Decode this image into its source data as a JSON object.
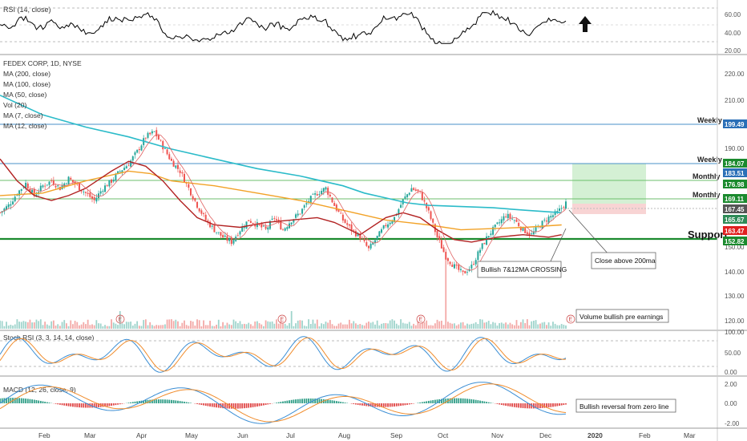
{
  "colors": {
    "ma200": "#2bbbc9",
    "ma100": "#f2a227",
    "ma50": "#b22222",
    "ma7": "#e06060",
    "ma12": "#c8a0a0",
    "up": "#26a69a",
    "down": "#ef5350",
    "support": "#1b8a2e",
    "level_line": "#4a90c8",
    "monthly_line": "#6cbf6c",
    "zone_profit": "#d4f0d4",
    "zone_stop": "#f8d4d4",
    "macd_pos": "#2e9d86",
    "macd_neg": "#e04848",
    "rsi": "#000000",
    "stoch_k": "#3b8ed4",
    "stoch_d": "#f08c2c"
  },
  "panes": {
    "rsi": {
      "title": "RSI (14, close)",
      "ticks": [
        "60.00",
        "40.00",
        "20.00"
      ],
      "arrow_icon": "up-arrow-icon"
    },
    "price": {
      "legend": [
        "FEDEX CORP, 1D, NYSE",
        "MA (200, close)",
        "MA (100, close)",
        "MA (50, close)",
        "Vol (20)",
        "MA (7, close)",
        "MA (12, close)"
      ],
      "ticks": [
        "220.00",
        "210.00",
        "190.00",
        "150.00",
        "140.00",
        "130.00",
        "120.00"
      ]
    },
    "stoch": {
      "title": "Stoch RSI (3, 3, 14, 14, close)",
      "ticks": [
        "100.00",
        "50.00",
        "0.00"
      ]
    },
    "macd": {
      "title": "MACD (12, 26, close, 9)",
      "ticks": [
        "2.00",
        "0.00",
        "-2.00"
      ]
    }
  },
  "time_axis": [
    "Feb",
    "Mar",
    "Apr",
    "May",
    "Jun",
    "Jul",
    "Aug",
    "Sep",
    "Oct",
    "Nov",
    "Dec",
    "2020",
    "Feb",
    "Mar"
  ],
  "price_badges": [
    "199.49",
    "184.07",
    "183.51",
    "176.98",
    "169.11",
    "167.45",
    "165.67",
    "163.47",
    "152.82"
  ],
  "level_labels": {
    "weekly_top": "Weekly",
    "weekly_2": "Weekly",
    "monthly_1": "Monthly",
    "monthly_2": "Monthly",
    "support": "Support"
  },
  "annotations": {
    "bullish_cross": "Bullish 7&12MA CROSSING",
    "close_above": "Close above 200ma",
    "volume": "Volume bullish pre earnings",
    "macd_note": "Bullish reversal from zero line"
  },
  "earnings_marker": "E",
  "chart_data": {
    "type": "candlestick",
    "symbol": "FEDEX CORP",
    "interval": "1D",
    "exchange": "NYSE",
    "price_range": [
      116,
      230
    ],
    "levels": [
      {
        "label": "Weekly",
        "value": 199.49
      },
      {
        "label": "Weekly",
        "value": 184.07
      },
      {
        "label": "Monthly",
        "value": 176.98
      },
      {
        "label": "Monthly",
        "value": 169.11
      },
      {
        "label": "Support",
        "value": 152.82
      }
    ],
    "current_prices": [
      183.51,
      167.45,
      165.67,
      163.47
    ],
    "close_path": [
      [
        0,
        165
      ],
      [
        4,
        168
      ],
      [
        8,
        173
      ],
      [
        12,
        177
      ],
      [
        16,
        172
      ],
      [
        20,
        176
      ],
      [
        24,
        178
      ],
      [
        28,
        175
      ],
      [
        32,
        179
      ],
      [
        36,
        176
      ],
      [
        40,
        173
      ],
      [
        44,
        170
      ],
      [
        48,
        175
      ],
      [
        52,
        178
      ],
      [
        56,
        182
      ],
      [
        60,
        185
      ],
      [
        64,
        190
      ],
      [
        68,
        196
      ],
      [
        72,
        198
      ],
      [
        76,
        192
      ],
      [
        80,
        186
      ],
      [
        84,
        182
      ],
      [
        88,
        175
      ],
      [
        92,
        168
      ],
      [
        96,
        162
      ],
      [
        100,
        158
      ],
      [
        104,
        155
      ],
      [
        108,
        153
      ],
      [
        112,
        158
      ],
      [
        116,
        162
      ],
      [
        120,
        160
      ],
      [
        124,
        158
      ],
      [
        128,
        163
      ],
      [
        132,
        158
      ],
      [
        136,
        162
      ],
      [
        140,
        165
      ],
      [
        144,
        170
      ],
      [
        148,
        173
      ],
      [
        152,
        175
      ],
      [
        156,
        168
      ],
      [
        160,
        162
      ],
      [
        164,
        158
      ],
      [
        168,
        155
      ],
      [
        172,
        150
      ],
      [
        176,
        155
      ],
      [
        180,
        160
      ],
      [
        184,
        163
      ],
      [
        188,
        170
      ],
      [
        192,
        175
      ],
      [
        196,
        173
      ],
      [
        200,
        165
      ],
      [
        204,
        155
      ],
      [
        208,
        147
      ],
      [
        212,
        143
      ],
      [
        216,
        140
      ],
      [
        220,
        143
      ],
      [
        224,
        150
      ],
      [
        228,
        156
      ],
      [
        232,
        160
      ],
      [
        236,
        164
      ],
      [
        240,
        162
      ],
      [
        244,
        158
      ],
      [
        248,
        156
      ],
      [
        252,
        160
      ],
      [
        256,
        163
      ],
      [
        260,
        165
      ],
      [
        264,
        169
      ]
    ],
    "ma200": [
      [
        0,
        213
      ],
      [
        20,
        205
      ],
      [
        40,
        200
      ],
      [
        60,
        196
      ],
      [
        80,
        191
      ],
      [
        100,
        187
      ],
      [
        120,
        183
      ],
      [
        140,
        180
      ],
      [
        160,
        176
      ],
      [
        170,
        173
      ],
      [
        180,
        171
      ],
      [
        190,
        169
      ],
      [
        200,
        168
      ],
      [
        215,
        167.5
      ],
      [
        230,
        167
      ],
      [
        245,
        166
      ],
      [
        262,
        165
      ]
    ],
    "ma100": [
      [
        0,
        172
      ],
      [
        20,
        173
      ],
      [
        40,
        178
      ],
      [
        60,
        182
      ],
      [
        70,
        181
      ],
      [
        80,
        178
      ],
      [
        100,
        176
      ],
      [
        120,
        173
      ],
      [
        140,
        170
      ],
      [
        160,
        166
      ],
      [
        180,
        162
      ],
      [
        200,
        160
      ],
      [
        215,
        158
      ],
      [
        230,
        158.5
      ],
      [
        245,
        159
      ],
      [
        262,
        160
      ]
    ],
    "ma50": [
      [
        0,
        187
      ],
      [
        8,
        178
      ],
      [
        16,
        172
      ],
      [
        24,
        170
      ],
      [
        32,
        172
      ],
      [
        40,
        175
      ],
      [
        52,
        182
      ],
      [
        60,
        186
      ],
      [
        68,
        184
      ],
      [
        76,
        178
      ],
      [
        84,
        170
      ],
      [
        92,
        163
      ],
      [
        100,
        160
      ],
      [
        112,
        159
      ],
      [
        124,
        161
      ],
      [
        136,
        162
      ],
      [
        148,
        163
      ],
      [
        156,
        161
      ],
      [
        168,
        156
      ],
      [
        180,
        163
      ],
      [
        188,
        165
      ],
      [
        196,
        163
      ],
      [
        204,
        158
      ],
      [
        212,
        154
      ],
      [
        220,
        153
      ],
      [
        232,
        155
      ],
      [
        244,
        156
      ],
      [
        256,
        155
      ],
      [
        262,
        156
      ]
    ],
    "volume_note": "Volume bullish pre earnings",
    "rsi_note": "RSI (14, close)",
    "stoch_levels": [
      80,
      20
    ],
    "macd_zero": 0
  }
}
